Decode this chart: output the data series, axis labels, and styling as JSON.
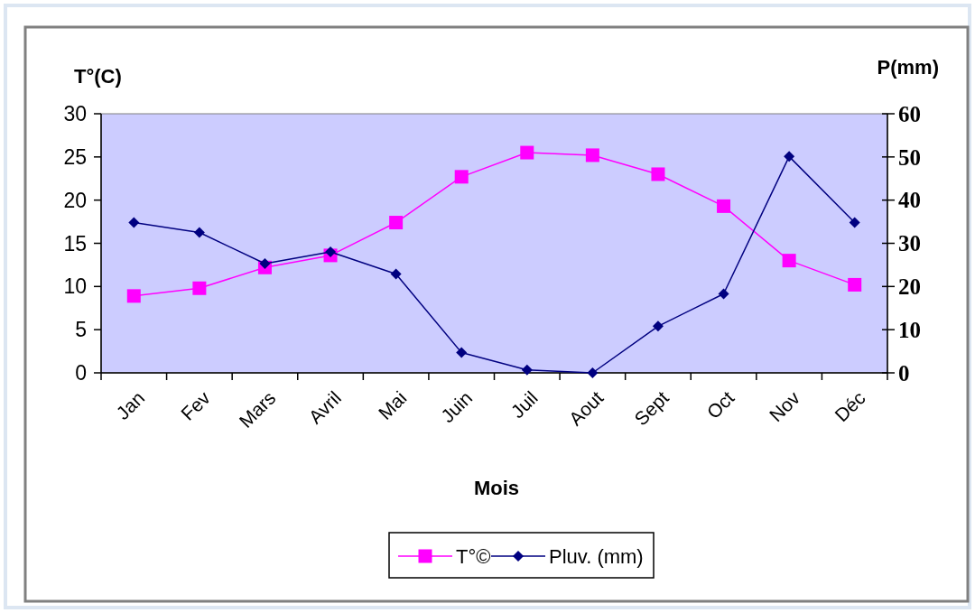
{
  "chart_data": {
    "type": "line",
    "xlabel": "Mois",
    "ylabel": "T°(C)",
    "y2label": "P(mm)",
    "categories": [
      "Jan",
      "Fev",
      "Mars",
      "Avril",
      "Mai",
      "Juin",
      "Juil",
      "Aout",
      "Sept",
      "Oct",
      "Nov",
      "Déc"
    ],
    "series": [
      {
        "name": "T°©",
        "color": "#ff00ff",
        "marker": "square",
        "values": [
          8.9,
          9.8,
          12.2,
          13.6,
          17.4,
          22.7,
          25.5,
          25.2,
          23.0,
          19.3,
          13.0,
          10.2
        ]
      },
      {
        "name": "Pluv. (mm)",
        "color": "#000080",
        "marker": "diamond",
        "axis": "y2",
        "values": [
          34.8,
          32.5,
          25.3,
          28.0,
          22.9,
          4.7,
          0.7,
          0,
          10.8,
          18.3,
          50.1,
          34.8
        ]
      }
    ],
    "ylim": [
      0,
      30
    ],
    "yticks": [
      0,
      5,
      10,
      15,
      20,
      25,
      30
    ],
    "y2lim": [
      0,
      60
    ],
    "y2ticks": [
      0,
      10,
      20,
      30,
      40,
      50,
      60
    ],
    "grid": false,
    "legend": "bottom"
  }
}
